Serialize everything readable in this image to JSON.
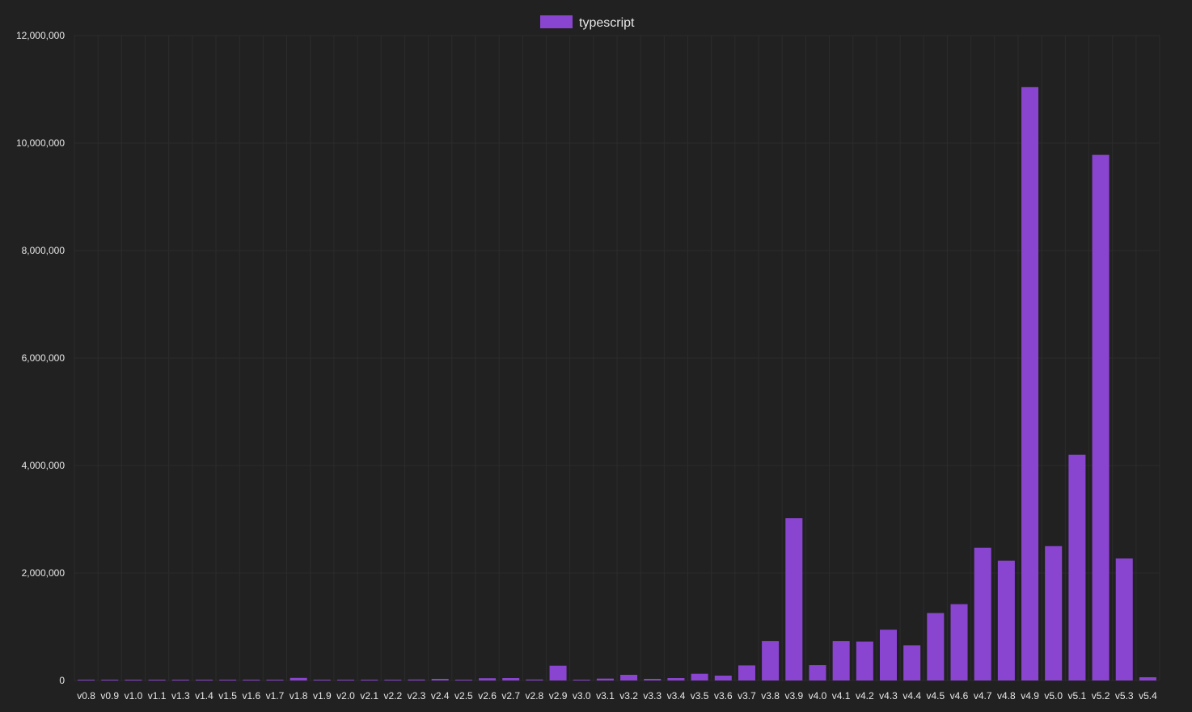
{
  "chart_data": {
    "type": "bar",
    "categories": [
      "v0.8",
      "v0.9",
      "v1.0",
      "v1.1",
      "v1.3",
      "v1.4",
      "v1.5",
      "v1.6",
      "v1.7",
      "v1.8",
      "v1.9",
      "v2.0",
      "v2.1",
      "v2.2",
      "v2.3",
      "v2.4",
      "v2.5",
      "v2.6",
      "v2.7",
      "v2.8",
      "v2.9",
      "v3.0",
      "v3.1",
      "v3.2",
      "v3.3",
      "v3.4",
      "v3.5",
      "v3.6",
      "v3.7",
      "v3.8",
      "v3.9",
      "v4.0",
      "v4.1",
      "v4.2",
      "v4.3",
      "v4.4",
      "v4.5",
      "v4.6",
      "v4.7",
      "v4.8",
      "v4.9",
      "v5.0",
      "v5.1",
      "v5.2",
      "v5.3",
      "v5.4"
    ],
    "series": [
      {
        "name": "typescript",
        "color": "#8a45d0",
        "values": [
          4000,
          6000,
          5000,
          5000,
          6000,
          5000,
          5000,
          5000,
          6000,
          48000,
          6000,
          3000,
          3000,
          15000,
          18000,
          30000,
          12000,
          42000,
          45000,
          18000,
          275000,
          10000,
          35000,
          105000,
          30000,
          45000,
          125000,
          90000,
          280000,
          735000,
          3020000,
          285000,
          735000,
          725000,
          945000,
          655000,
          1255000,
          1420000,
          2470000,
          2230000,
          11040000,
          2500000,
          4200000,
          9780000,
          2270000,
          60000
        ]
      }
    ],
    "xlabel": "",
    "ylabel": "",
    "ylim": [
      0,
      12000000
    ],
    "yticks": [
      "0",
      "2,000,000",
      "4,000,000",
      "6,000,000",
      "8,000,000",
      "10,000,000",
      "12,000,000"
    ],
    "grid": true,
    "legend": "top-center",
    "colors": {
      "background": "#212121",
      "grid": "#2c2c2c",
      "text": "#e6e6e6",
      "bar": "#8a45d0"
    }
  }
}
